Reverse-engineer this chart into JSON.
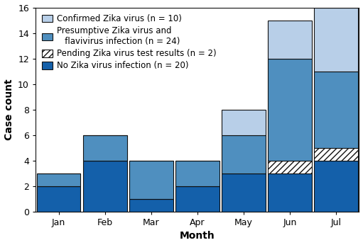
{
  "months": [
    "Jan",
    "Feb",
    "Mar",
    "Apr",
    "May",
    "Jun",
    "Jul"
  ],
  "no_zika": [
    2,
    4,
    1,
    2,
    3,
    3,
    4
  ],
  "pending": [
    0,
    0,
    0,
    0,
    0,
    1,
    1
  ],
  "presumptive": [
    1,
    2,
    3,
    2,
    3,
    8,
    6
  ],
  "confirmed": [
    0,
    0,
    0,
    0,
    2,
    3,
    5
  ],
  "color_no_zika": "#1460aa",
  "color_pending_fill": "#ffffff",
  "color_presumptive": "#4f8fbf",
  "color_confirmed": "#b8cfe8",
  "color_edge": "#111111",
  "xlabel": "Month",
  "ylabel": "Case count",
  "ylim": [
    0,
    16
  ],
  "yticks": [
    0,
    2,
    4,
    6,
    8,
    10,
    12,
    14,
    16
  ],
  "legend_labels": [
    "Confirmed Zika virus (n = 10)",
    "Presumptive Zika virus and\n   flavivirus infection (n = 24)",
    "Pending Zika virus test results (n = 2)",
    "No Zika virus infection (n = 20)"
  ],
  "figsize": [
    5.11,
    3.46
  ],
  "dpi": 100,
  "bar_width": 0.95,
  "fontsize_axis_label": 10,
  "fontsize_tick": 9,
  "fontsize_legend": 8.5
}
